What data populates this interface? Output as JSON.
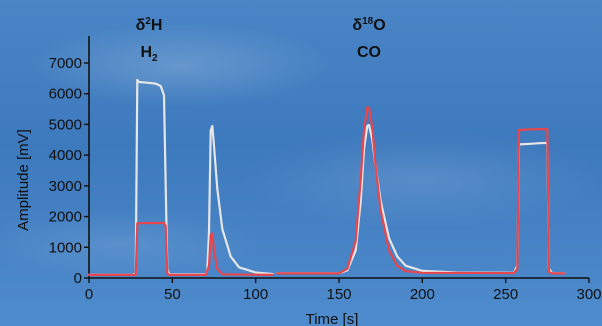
{
  "chart_data": {
    "type": "line",
    "title": "",
    "xlabel": "Time [s]",
    "ylabel": "Amplitude [mV]",
    "xlim": [
      0,
      300
    ],
    "ylim": [
      0,
      7000
    ],
    "xticks": [
      0,
      50,
      100,
      150,
      200,
      250,
      300
    ],
    "yticks": [
      0,
      1000,
      2000,
      3000,
      4000,
      5000,
      6000,
      7000
    ],
    "grid": false,
    "colors": {
      "white_trace": "#e6e6e6",
      "red_trace": "#e8464c",
      "axis": "#111111"
    },
    "annotations": [
      {
        "id": "h2",
        "delta": "δ",
        "isotope_sup": "2",
        "element": "H",
        "gas": "H",
        "gas_sub": "2",
        "x": 36
      },
      {
        "id": "co",
        "delta": "δ",
        "isotope_sup": "18",
        "element": "O",
        "gas": "CO",
        "gas_sub": "",
        "x": 168
      }
    ],
    "series": [
      {
        "color_key": "white_trace",
        "segments": [
          [
            [
              0,
              100
            ],
            [
              26,
              100
            ],
            [
              28,
              150
            ],
            [
              29,
              6450
            ],
            [
              30,
              6380
            ],
            [
              35,
              6360
            ],
            [
              40,
              6330
            ],
            [
              43,
              6250
            ],
            [
              45,
              5950
            ],
            [
              46,
              3000
            ],
            [
              47,
              300
            ],
            [
              48,
              120
            ],
            [
              70,
              120
            ],
            [
              71,
              250
            ],
            [
              72,
              1500
            ],
            [
              73,
              4800
            ],
            [
              74,
              4950
            ],
            [
              75,
              4300
            ],
            [
              77,
              2900
            ],
            [
              80,
              1600
            ],
            [
              85,
              700
            ],
            [
              90,
              350
            ],
            [
              100,
              180
            ],
            [
              110,
              130
            ]
          ],
          [
            [
              113,
              150
            ],
            [
              150,
              150
            ],
            [
              155,
              250
            ],
            [
              160,
              900
            ],
            [
              163,
              2500
            ],
            [
              165,
              4200
            ],
            [
              167,
              4950
            ],
            [
              168,
              4980
            ],
            [
              170,
              4500
            ],
            [
              172,
              3600
            ],
            [
              175,
              2500
            ],
            [
              180,
              1300
            ],
            [
              185,
              700
            ],
            [
              190,
              400
            ],
            [
              200,
              230
            ],
            [
              220,
              180
            ],
            [
              255,
              170
            ],
            [
              257,
              400
            ],
            [
              258,
              4350
            ],
            [
              265,
              4370
            ],
            [
              270,
              4390
            ],
            [
              275,
              4400
            ],
            [
              276,
              300
            ],
            [
              278,
              150
            ],
            [
              285,
              150
            ]
          ]
        ]
      },
      {
        "color_key": "red_trace",
        "segments": [
          [
            [
              0,
              100
            ],
            [
              28,
              100
            ],
            [
              29,
              1780
            ],
            [
              35,
              1790
            ],
            [
              45,
              1790
            ],
            [
              46,
              1700
            ],
            [
              47,
              150
            ],
            [
              48,
              100
            ],
            [
              70,
              100
            ],
            [
              72,
              400
            ],
            [
              73,
              1400
            ],
            [
              74,
              1450
            ],
            [
              75,
              900
            ],
            [
              77,
              300
            ],
            [
              80,
              120
            ],
            [
              110,
              100
            ]
          ],
          [
            [
              113,
              150
            ],
            [
              150,
              150
            ],
            [
              155,
              300
            ],
            [
              160,
              1200
            ],
            [
              163,
              3200
            ],
            [
              165,
              4800
            ],
            [
              167,
              5550
            ],
            [
              168,
              5550
            ],
            [
              170,
              4900
            ],
            [
              172,
              3600
            ],
            [
              175,
              2200
            ],
            [
              180,
              900
            ],
            [
              185,
              400
            ],
            [
              190,
              220
            ],
            [
              200,
              170
            ],
            [
              255,
              160
            ],
            [
              257,
              300
            ],
            [
              258,
              4820
            ],
            [
              265,
              4840
            ],
            [
              275,
              4850
            ],
            [
              276,
              200
            ],
            [
              278,
              150
            ],
            [
              285,
              150
            ]
          ]
        ]
      }
    ]
  }
}
